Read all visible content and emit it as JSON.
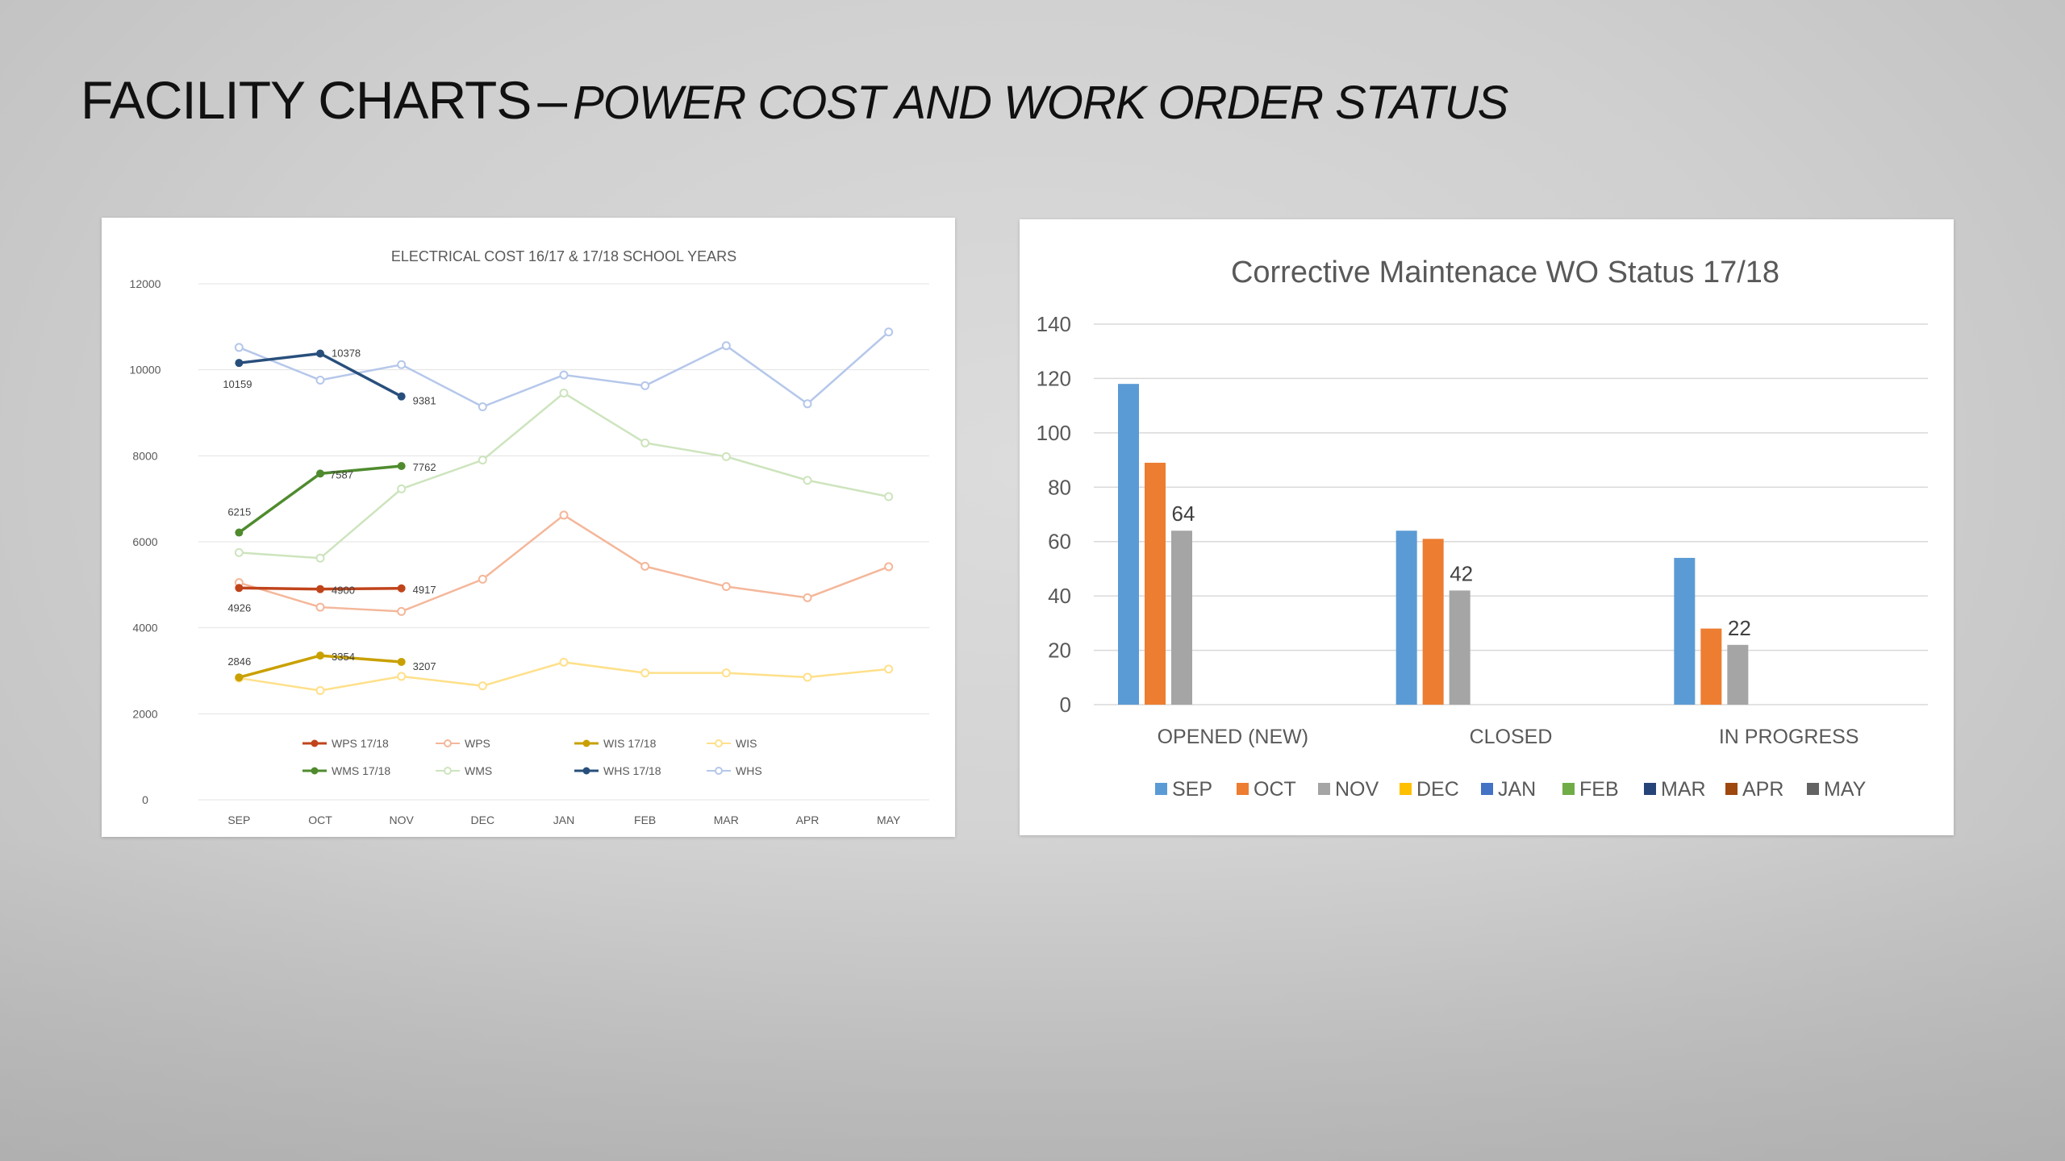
{
  "slide": {
    "title_main": "FACILITY CHARTS",
    "title_dash": "–",
    "title_sub": "POWER COST AND WORK ORDER STATUS"
  },
  "chart_data": [
    {
      "type": "line",
      "title": "ELECTRICAL COST  16/17  & 17/18 SCHOOL YEARS",
      "categories": [
        "SEP",
        "OCT",
        "NOV",
        "DEC",
        "JAN",
        "FEB",
        "MAR",
        "APR",
        "MAY"
      ],
      "ylim": [
        0,
        12000
      ],
      "yticks": [
        0,
        2000,
        4000,
        6000,
        8000,
        10000,
        12000
      ],
      "grid": true,
      "legend_position": "bottom",
      "series": [
        {
          "name": "WPS 17/18",
          "color": "#c0441b",
          "values": [
            4926,
            4900,
            4917,
            null,
            null,
            null,
            null,
            null,
            null
          ],
          "labels": [
            "4926",
            "4900",
            "4917"
          ],
          "dark": true
        },
        {
          "name": "WPS",
          "color": "#f4b79a",
          "values": [
            5050,
            4480,
            4380,
            5130,
            6620,
            5430,
            4960,
            4700,
            5420
          ],
          "dark": false
        },
        {
          "name": "WIS 17/18",
          "color": "#c9a000",
          "values": [
            2846,
            3354,
            3207,
            null,
            null,
            null,
            null,
            null,
            null
          ],
          "labels": [
            "2846",
            "3354",
            "3207"
          ],
          "dark": true
        },
        {
          "name": "WIS",
          "color": "#ffe08a",
          "values": [
            2830,
            2540,
            2870,
            2650,
            3200,
            2950,
            2950,
            2850,
            3040
          ],
          "dark": false
        },
        {
          "name": "WMS 17/18",
          "color": "#4f8b2e",
          "values": [
            6215,
            7587,
            7762,
            null,
            null,
            null,
            null,
            null,
            null
          ],
          "labels": [
            "6215",
            "7587",
            "7762"
          ],
          "dark": true
        },
        {
          "name": "WMS",
          "color": "#cde4bd",
          "values": [
            5750,
            5620,
            7230,
            7900,
            9460,
            8300,
            7980,
            7430,
            7050
          ],
          "dark": false
        },
        {
          "name": "WHS 17/18",
          "color": "#284f7c",
          "values": [
            10159,
            10378,
            9381,
            null,
            null,
            null,
            null,
            null,
            null
          ],
          "labels": [
            "10159",
            "10378",
            "9381"
          ],
          "dark": true
        },
        {
          "name": "WHS",
          "color": "#b5c7ea",
          "values": [
            10520,
            9760,
            10120,
            9140,
            9880,
            9630,
            10560,
            9210,
            10880
          ],
          "dark": false
        }
      ]
    },
    {
      "type": "bar",
      "title": "Corrective Maintenace WO Status 17/18",
      "categories": [
        "OPENED (NEW)",
        "CLOSED",
        "IN PROGRESS"
      ],
      "ylim": [
        0,
        140
      ],
      "yticks": [
        0,
        20,
        40,
        60,
        80,
        100,
        120,
        140
      ],
      "grid": true,
      "legend_position": "bottom",
      "legend": [
        {
          "name": "SEP",
          "color": "#5b9bd5"
        },
        {
          "name": "OCT",
          "color": "#ed7d31"
        },
        {
          "name": "NOV",
          "color": "#a5a5a5"
        },
        {
          "name": "DEC",
          "color": "#ffc000"
        },
        {
          "name": "JAN",
          "color": "#4472c4"
        },
        {
          "name": "FEB",
          "color": "#70ad47"
        },
        {
          "name": "MAR",
          "color": "#264478"
        },
        {
          "name": "APR",
          "color": "#9e480e"
        },
        {
          "name": "MAY",
          "color": "#636363"
        }
      ],
      "series": [
        {
          "name": "SEP",
          "color": "#5b9bd5",
          "values": [
            118,
            64,
            54
          ]
        },
        {
          "name": "OCT",
          "color": "#ed7d31",
          "values": [
            89,
            61,
            28
          ]
        },
        {
          "name": "NOV",
          "color": "#a5a5a5",
          "values": [
            64,
            42,
            22
          ],
          "labels": [
            "64",
            "42",
            "22"
          ]
        }
      ]
    }
  ]
}
